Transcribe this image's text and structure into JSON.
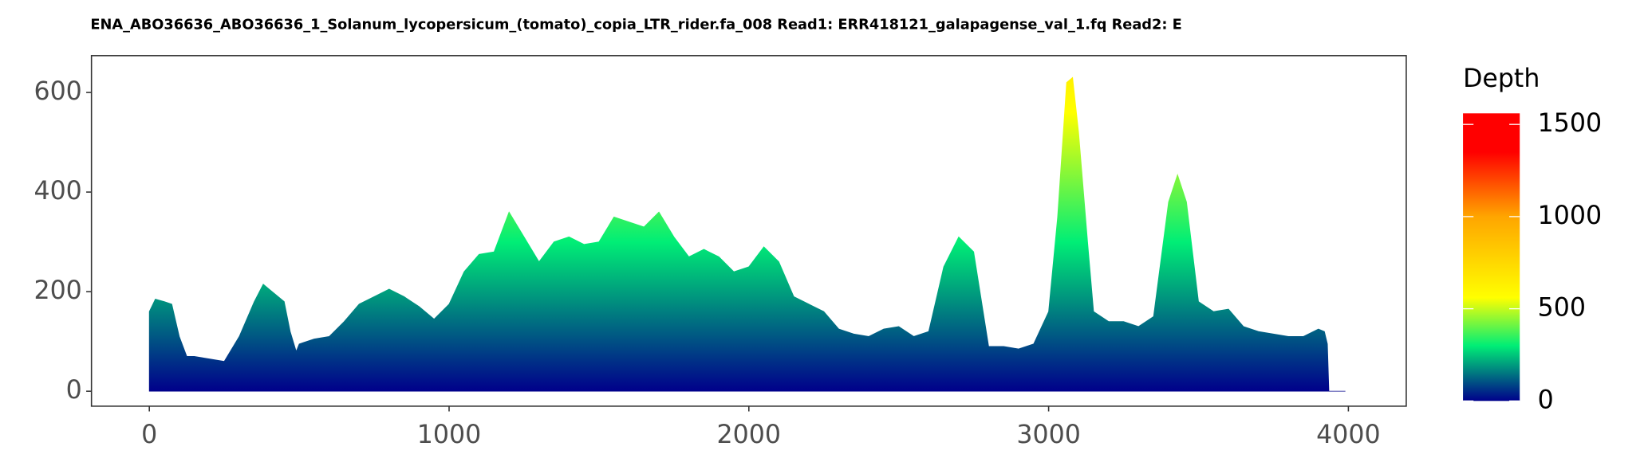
{
  "chart_data": {
    "type": "area",
    "title": "ENA_ABO36636_ABO36636_1_Solanum_lycopersicum_(tomato)_copia_LTR_rider.fa_008   Read1: ERR418121_galapagense_val_1.fq   Read2: E",
    "x": [
      0,
      20,
      50,
      75,
      100,
      125,
      150,
      200,
      250,
      300,
      350,
      380,
      400,
      450,
      470,
      490,
      500,
      550,
      600,
      650,
      700,
      750,
      800,
      850,
      900,
      950,
      1000,
      1050,
      1100,
      1150,
      1200,
      1250,
      1300,
      1350,
      1400,
      1450,
      1500,
      1550,
      1600,
      1650,
      1700,
      1750,
      1800,
      1850,
      1900,
      1950,
      2000,
      2050,
      2100,
      2150,
      2200,
      2250,
      2300,
      2350,
      2400,
      2450,
      2500,
      2550,
      2600,
      2650,
      2700,
      2750,
      2800,
      2850,
      2900,
      2950,
      3000,
      3030,
      3060,
      3080,
      3100,
      3130,
      3150,
      3200,
      3250,
      3300,
      3350,
      3400,
      3430,
      3460,
      3500,
      3550,
      3600,
      3650,
      3700,
      3750,
      3800,
      3850,
      3900,
      3920,
      3930,
      3935,
      3990
    ],
    "values": [
      160,
      185,
      180,
      175,
      110,
      70,
      70,
      65,
      60,
      110,
      180,
      215,
      205,
      180,
      120,
      80,
      95,
      105,
      110,
      140,
      175,
      190,
      205,
      190,
      170,
      145,
      175,
      240,
      275,
      280,
      360,
      310,
      260,
      300,
      310,
      295,
      300,
      350,
      340,
      330,
      360,
      310,
      270,
      285,
      270,
      240,
      250,
      290,
      260,
      190,
      175,
      160,
      125,
      115,
      110,
      125,
      130,
      110,
      120,
      250,
      310,
      280,
      90,
      90,
      85,
      95,
      160,
      350,
      620,
      630,
      520,
      300,
      160,
      140,
      140,
      130,
      150,
      380,
      435,
      380,
      180,
      160,
      165,
      130,
      120,
      115,
      110,
      110,
      125,
      120,
      95,
      0,
      0
    ],
    "xlim": [
      -193,
      4193
    ],
    "ylim": [
      -30,
      674
    ],
    "xticks": [
      0,
      1000,
      2000,
      3000,
      4000
    ],
    "yticks": [
      0,
      200,
      400,
      600
    ],
    "grid": false,
    "legend": {
      "title": "Depth",
      "ticks": [
        0,
        500,
        1000,
        1500
      ],
      "lim": [
        0,
        1560
      ],
      "colorscale": [
        {
          "value": 0,
          "color": "#00008b"
        },
        {
          "value": 300,
          "color": "#00ee76"
        },
        {
          "value": 560,
          "color": "#ffff00"
        },
        {
          "value": 1000,
          "color": "#ffa500"
        },
        {
          "value": 1350,
          "color": "#ff0000"
        },
        {
          "value": 1560,
          "color": "#ff0000"
        }
      ]
    }
  }
}
